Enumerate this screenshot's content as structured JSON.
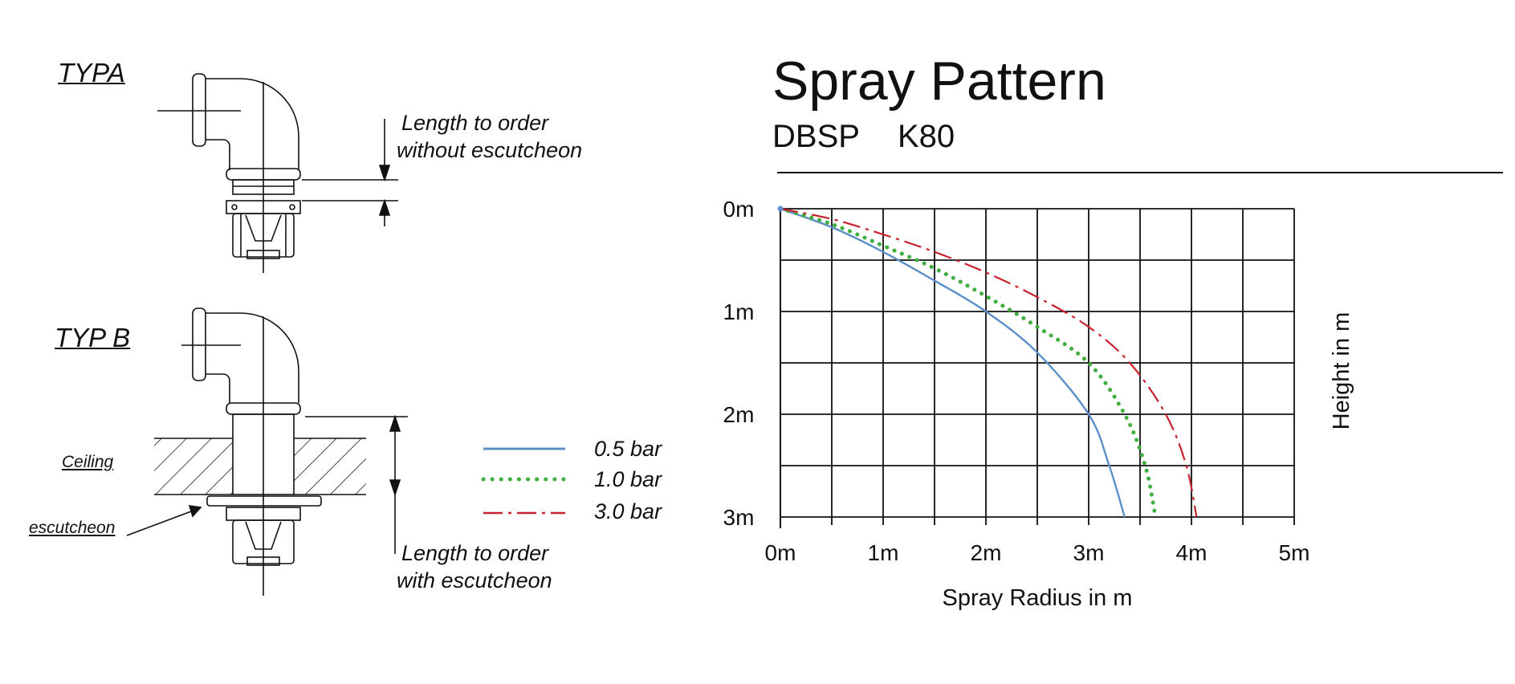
{
  "drawing": {
    "typ_a_label": "TYPA",
    "typ_b_label": "TYP B",
    "length_without_line1": "Length to order",
    "length_without_line2": "without escutcheon",
    "length_with_line1": "Length to order",
    "length_with_line2": "with escutcheon",
    "ceiling_label": "Ceiling",
    "escutcheon_label": "escutcheon"
  },
  "legend": {
    "items": [
      {
        "label": "0.5 bar",
        "color": "#5b8fc9",
        "style": "solid"
      },
      {
        "label": "1.0 bar",
        "color": "#3fae3f",
        "style": "dotted"
      },
      {
        "label": "3.0 bar",
        "color": "#c8202c",
        "style": "dash-dot"
      }
    ]
  },
  "header": {
    "title": "Spray Pattern",
    "model": "DBSP",
    "k_factor": "K80"
  },
  "chart_data": {
    "type": "line",
    "title": "Spray Pattern",
    "subtitle": "DBSP    K80",
    "xlabel": "Spray Radius in m",
    "ylabel": "Height in m",
    "xlim": [
      0,
      5
    ],
    "ylim": [
      0,
      3
    ],
    "y_inverted": true,
    "grid": true,
    "x_tick_labels": [
      "0m",
      "1m",
      "2m",
      "3m",
      "4m",
      "5m"
    ],
    "y_tick_labels": [
      "0m",
      "1m",
      "2m",
      "3m"
    ],
    "legend_position": "left",
    "series": [
      {
        "name": "0.5 bar",
        "color": "#5b8fc9",
        "style": "solid",
        "x": [
          0,
          0.5,
          1.0,
          1.5,
          2.0,
          2.5,
          3.0,
          3.2,
          3.35
        ],
        "y": [
          0,
          0.18,
          0.42,
          0.7,
          1.0,
          1.4,
          2.0,
          2.5,
          3.0
        ]
      },
      {
        "name": "1.0 bar",
        "color": "#3fae3f",
        "style": "dotted",
        "x": [
          0,
          0.5,
          1.0,
          1.5,
          2.0,
          2.5,
          3.0,
          3.35,
          3.55,
          3.65
        ],
        "y": [
          0,
          0.15,
          0.36,
          0.58,
          0.85,
          1.15,
          1.5,
          2.0,
          2.5,
          3.0
        ]
      },
      {
        "name": "3.0 bar",
        "color": "#c8202c",
        "style": "dash-dot",
        "x": [
          0,
          0.5,
          1.0,
          1.5,
          2.0,
          2.5,
          3.0,
          3.4,
          3.75,
          3.95,
          4.05
        ],
        "y": [
          0,
          0.1,
          0.25,
          0.42,
          0.62,
          0.86,
          1.15,
          1.5,
          2.0,
          2.5,
          3.0
        ]
      }
    ]
  }
}
